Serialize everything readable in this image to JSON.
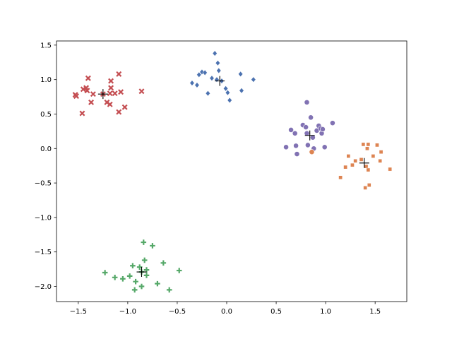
{
  "chart_data": {
    "type": "scatter",
    "title": "",
    "xlabel": "",
    "ylabel": "",
    "xlim": [
      -1.72,
      1.82
    ],
    "ylim": [
      -2.22,
      1.56
    ],
    "xticks": [
      -1.5,
      -1.0,
      -0.5,
      0.0,
      0.5,
      1.0,
      1.5
    ],
    "xtick_labels": [
      "−1.5",
      "−1.0",
      "−0.5",
      "0.0",
      "0.5",
      "1.0",
      "1.5"
    ],
    "yticks": [
      -2.0,
      -1.5,
      -1.0,
      -0.5,
      0.0,
      0.5,
      1.0,
      1.5
    ],
    "ytick_labels": [
      "−2.0",
      "−1.5",
      "−1.0",
      "−0.5",
      "0.0",
      "0.5",
      "1.0",
      "1.5"
    ],
    "grid": false,
    "legend": "none",
    "series": [
      {
        "marker": "x",
        "color": "#c44e52",
        "points": [
          [
            -1.53,
            0.78
          ],
          [
            -1.52,
            0.76
          ],
          [
            -1.46,
            0.51
          ],
          [
            -1.45,
            0.86
          ],
          [
            -1.42,
            0.88
          ],
          [
            -1.41,
            0.84
          ],
          [
            -1.4,
            1.02
          ],
          [
            -1.37,
            0.67
          ],
          [
            -1.35,
            0.79
          ],
          [
            -1.25,
            0.79
          ],
          [
            -1.21,
            0.67
          ],
          [
            -1.18,
            0.8
          ],
          [
            -1.18,
            0.64
          ],
          [
            -1.17,
            0.88
          ],
          [
            -1.17,
            0.98
          ],
          [
            -1.13,
            0.8
          ],
          [
            -1.09,
            1.08
          ],
          [
            -1.09,
            0.53
          ],
          [
            -1.07,
            0.82
          ],
          [
            -1.03,
            0.6
          ],
          [
            -0.86,
            0.83
          ]
        ]
      },
      {
        "marker": "diamond",
        "color": "#4c72b0",
        "points": [
          [
            -0.35,
            0.95
          ],
          [
            -0.3,
            0.92
          ],
          [
            -0.28,
            1.07
          ],
          [
            -0.25,
            1.11
          ],
          [
            -0.22,
            1.1
          ],
          [
            -0.19,
            0.8
          ],
          [
            -0.15,
            1.02
          ],
          [
            -0.12,
            1.38
          ],
          [
            -0.1,
            1.0
          ],
          [
            -0.09,
            1.24
          ],
          [
            -0.08,
            1.13
          ],
          [
            -0.05,
            0.98
          ],
          [
            -0.01,
            0.87
          ],
          [
            0.01,
            0.81
          ],
          [
            0.03,
            0.7
          ],
          [
            0.14,
            1.08
          ],
          [
            0.15,
            0.84
          ],
          [
            0.27,
            1.0
          ]
        ]
      },
      {
        "marker": "circle",
        "color": "#8172b3",
        "points": [
          [
            0.6,
            0.02
          ],
          [
            0.65,
            0.27
          ],
          [
            0.69,
            0.22
          ],
          [
            0.7,
            0.04
          ],
          [
            0.71,
            -0.08
          ],
          [
            0.77,
            0.34
          ],
          [
            0.8,
            0.31
          ],
          [
            0.81,
            0.22
          ],
          [
            0.81,
            0.67
          ],
          [
            0.82,
            0.05
          ],
          [
            0.85,
            0.45
          ],
          [
            0.87,
            0.16
          ],
          [
            0.88,
            0.0
          ],
          [
            0.91,
            0.26
          ],
          [
            0.93,
            0.33
          ],
          [
            0.95,
            0.29
          ],
          [
            0.96,
            0.22
          ],
          [
            0.97,
            0.28
          ],
          [
            0.99,
            0.02
          ],
          [
            1.07,
            0.37
          ]
        ]
      },
      {
        "marker": "circle",
        "color": "#dd8452",
        "points": [
          [
            0.86,
            -0.05
          ]
        ]
      },
      {
        "marker": "square",
        "color": "#dd8452",
        "points": [
          [
            1.15,
            -0.42
          ],
          [
            1.2,
            -0.27
          ],
          [
            1.23,
            -0.11
          ],
          [
            1.27,
            -0.24
          ],
          [
            1.3,
            -0.18
          ],
          [
            1.36,
            -0.16
          ],
          [
            1.38,
            0.06
          ],
          [
            1.4,
            -0.57
          ],
          [
            1.41,
            -0.26
          ],
          [
            1.42,
            0.0
          ],
          [
            1.43,
            0.06
          ],
          [
            1.43,
            -0.31
          ],
          [
            1.44,
            -0.53
          ],
          [
            1.48,
            -0.11
          ],
          [
            1.52,
            0.05
          ],
          [
            1.55,
            -0.18
          ],
          [
            1.56,
            -0.05
          ],
          [
            1.65,
            -0.3
          ]
        ]
      },
      {
        "marker": "plus",
        "color": "#55a868",
        "points": [
          [
            -1.23,
            -1.8
          ],
          [
            -1.13,
            -1.87
          ],
          [
            -1.05,
            -1.89
          ],
          [
            -0.98,
            -1.85
          ],
          [
            -0.95,
            -1.7
          ],
          [
            -0.93,
            -2.05
          ],
          [
            -0.92,
            -1.93
          ],
          [
            -0.88,
            -1.72
          ],
          [
            -0.86,
            -1.79
          ],
          [
            -0.86,
            -2.0
          ],
          [
            -0.84,
            -1.36
          ],
          [
            -0.83,
            -1.62
          ],
          [
            -0.81,
            -1.84
          ],
          [
            -0.81,
            -1.76
          ],
          [
            -0.75,
            -1.41
          ],
          [
            -0.7,
            -1.96
          ],
          [
            -0.64,
            -1.66
          ],
          [
            -0.58,
            -2.05
          ],
          [
            -0.48,
            -1.77
          ]
        ]
      }
    ],
    "centroids": {
      "marker": "plus",
      "color": "#000000",
      "points": [
        [
          -1.25,
          0.79
        ],
        [
          -0.07,
          0.98
        ],
        [
          0.84,
          0.19
        ],
        [
          1.39,
          -0.21
        ],
        [
          -0.86,
          -1.79
        ]
      ]
    }
  }
}
